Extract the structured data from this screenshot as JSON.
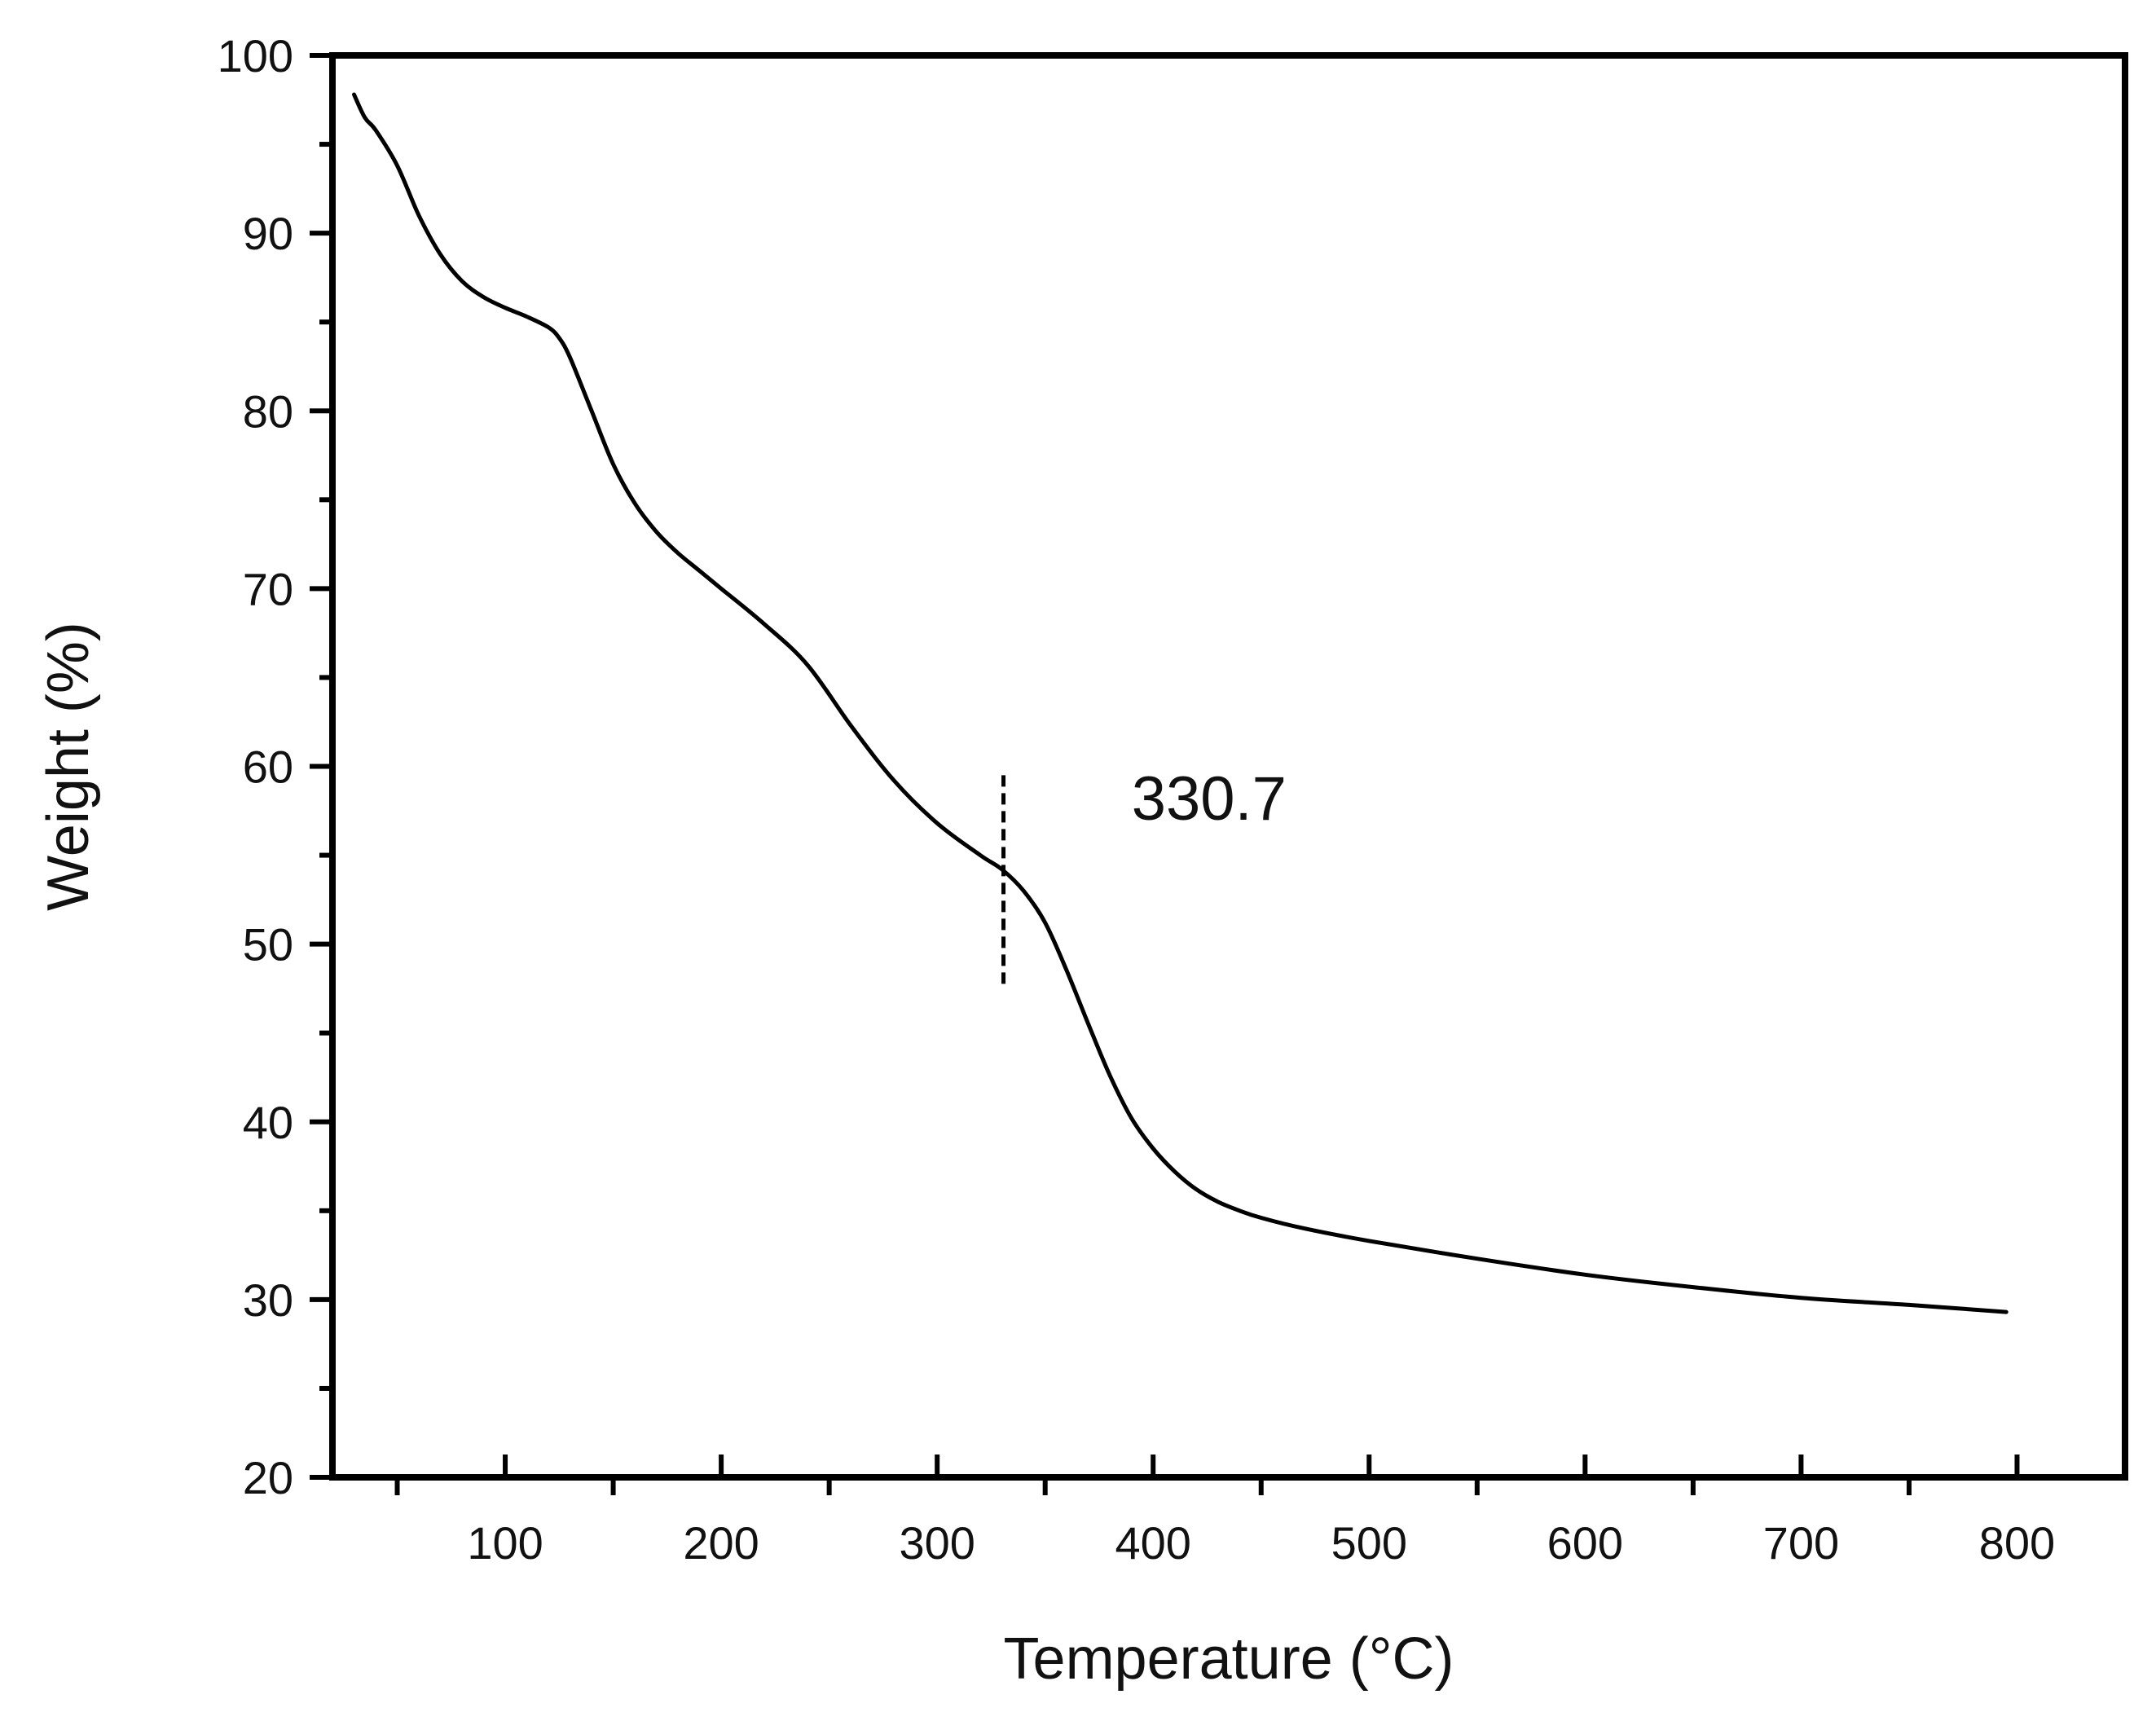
{
  "chart_data": {
    "type": "line",
    "title": "",
    "xlabel": "Temperature (°C)",
    "ylabel": "Weight (%)",
    "xlim": [
      20,
      850
    ],
    "ylim": [
      20,
      100
    ],
    "x_ticks": [
      100,
      200,
      300,
      400,
      500,
      600,
      700,
      800
    ],
    "x_minor_ticks": [
      50,
      150,
      250,
      350,
      450,
      550,
      650,
      750
    ],
    "y_ticks": [
      20,
      30,
      40,
      50,
      60,
      70,
      80,
      90,
      100
    ],
    "y_minor_ticks": [
      25,
      35,
      45,
      55,
      65,
      75,
      85,
      95
    ],
    "grid": false,
    "legend": false,
    "series": [
      {
        "color": "#000000",
        "x": [
          30,
          35,
          40,
          50,
          60,
          70,
          80,
          90,
          100,
          110,
          120,
          125,
          130,
          140,
          150,
          160,
          170,
          180,
          190,
          200,
          220,
          240,
          260,
          280,
          300,
          320,
          330,
          340,
          350,
          360,
          370,
          380,
          390,
          400,
          410,
          420,
          430,
          440,
          450,
          470,
          500,
          550,
          600,
          650,
          700,
          750,
          795
        ],
        "y": [
          97.8,
          96.5,
          95.8,
          93.8,
          91.0,
          88.8,
          87.3,
          86.4,
          85.8,
          85.3,
          84.7,
          84.1,
          83.0,
          80.0,
          77.0,
          74.8,
          73.2,
          72.0,
          71.0,
          70.0,
          68.0,
          65.7,
          62.3,
          59.2,
          56.8,
          55.0,
          54.2,
          53.0,
          51.2,
          48.5,
          45.5,
          42.6,
          40.2,
          38.5,
          37.2,
          36.2,
          35.5,
          35.0,
          34.6,
          34.0,
          33.3,
          32.3,
          31.4,
          30.7,
          30.1,
          29.7,
          29.3
        ]
      }
    ],
    "annotations": [
      {
        "type": "vline-dashed",
        "x": 330.7,
        "y_range": [
          47.5,
          59.5
        ],
        "label": "330.7",
        "label_x": 390,
        "label_y": 57
      }
    ]
  }
}
